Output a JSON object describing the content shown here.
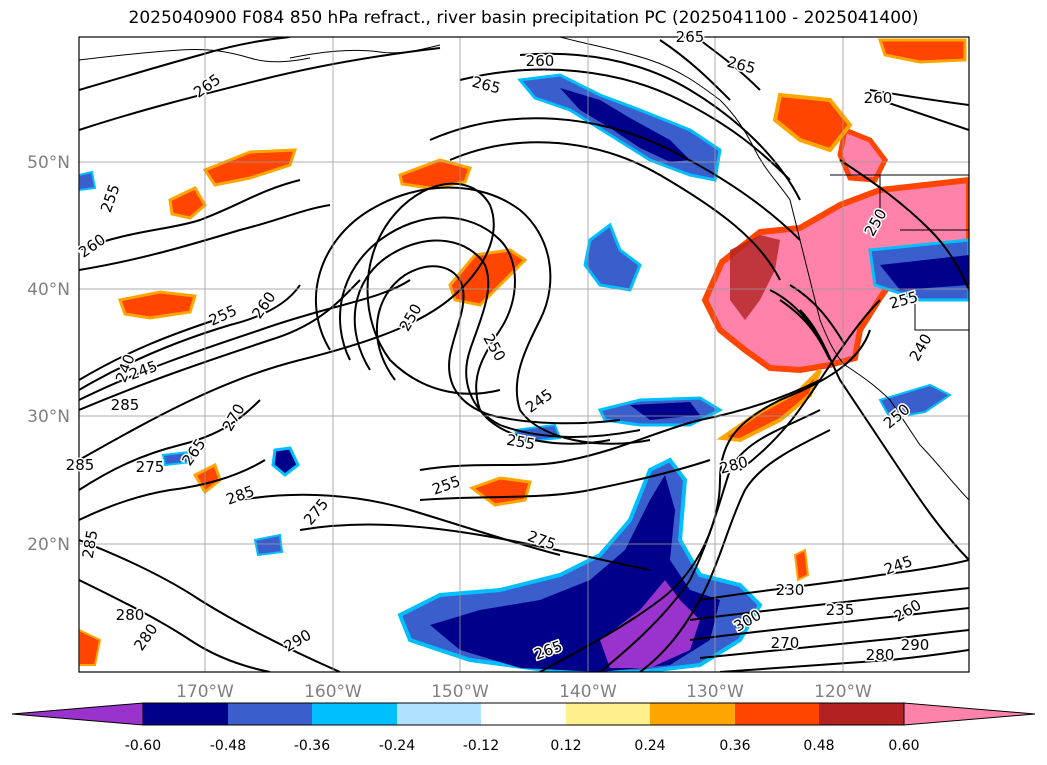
{
  "title": "2025040900 F084 850 hPa refract., river basin precipitation PC (2025041100 - 2025041400)",
  "lat_labels": [
    "50°N",
    "40°N",
    "30°N",
    "20°N"
  ],
  "lon_labels": [
    "170°W",
    "160°W",
    "150°W",
    "140°W",
    "130°W",
    "120°W"
  ],
  "contour_labels": [
    "260",
    "265",
    "265",
    "265",
    "265",
    "260",
    "255",
    "260",
    "250",
    "255",
    "260",
    "240",
    "245",
    "285",
    "270",
    "265",
    "275",
    "285",
    "250",
    "245",
    "255",
    "255",
    "275",
    "275",
    "280",
    "280",
    "285",
    "290",
    "285",
    "280",
    "245",
    "230",
    "235",
    "260",
    "270",
    "280",
    "290",
    "300",
    "255",
    "250",
    "240",
    "265",
    "250"
  ],
  "colorbar": {
    "ticks": [
      "-0.60",
      "-0.48",
      "-0.36",
      "-0.24",
      "-0.12",
      "0.12",
      "0.24",
      "0.36",
      "0.48",
      "0.60"
    ],
    "colors": {
      "under": "#9a32cd",
      "c1": "#00008b",
      "c2": "#3a5fcd",
      "c3": "#00bfff",
      "c4": "#b0e2ff",
      "c5": "#ffffff",
      "c6": "#fff08c",
      "c7": "#ffa500",
      "c8": "#ff4500",
      "c9": "#b22222",
      "over": "#ff82ab"
    }
  },
  "colors": {
    "grid": "#999999",
    "contour": "#000000",
    "coast": "#000000"
  }
}
